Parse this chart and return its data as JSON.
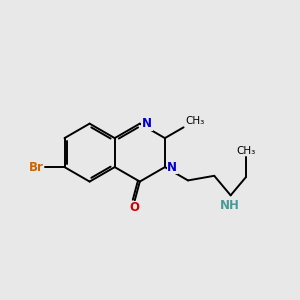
{
  "background_color": "#e8e8e8",
  "bond_color": "#000000",
  "bond_width": 1.4,
  "figsize": [
    3.0,
    3.0
  ],
  "dpi": 100,
  "xlim": [
    0.5,
    8.5
  ],
  "ylim": [
    2.8,
    7.8
  ],
  "Br_color": "#cc6600",
  "O_color": "#cc0000",
  "N_color": "#0000cc",
  "NH_color": "#4d9999",
  "C_color": "#000000"
}
